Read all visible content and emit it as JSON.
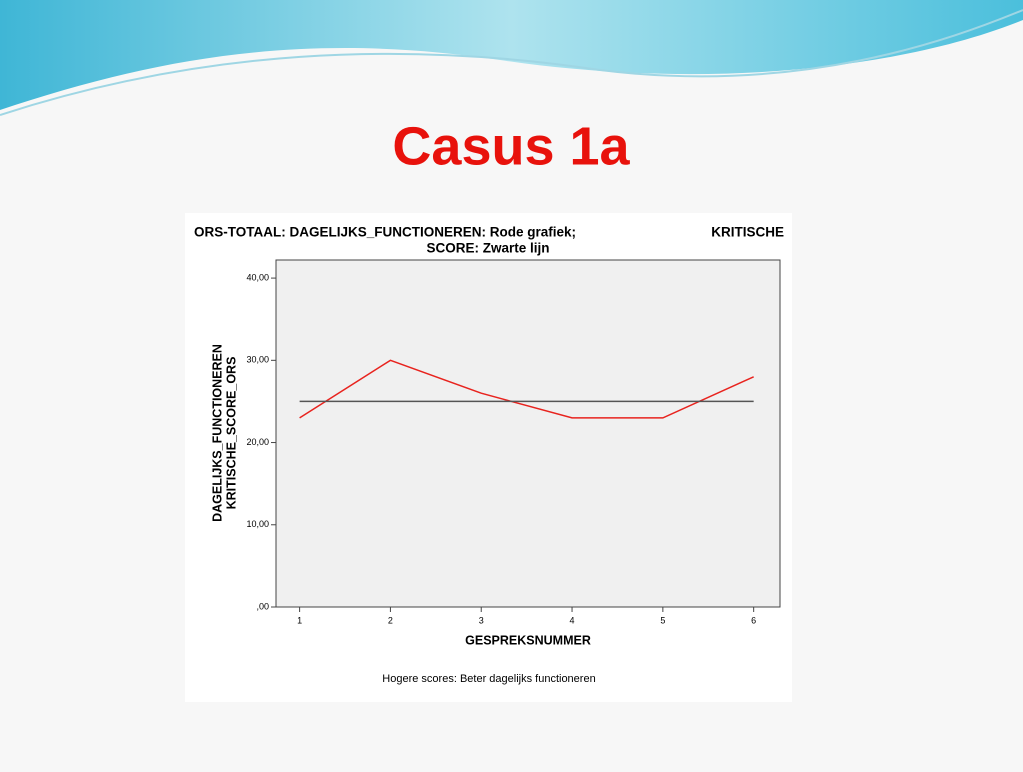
{
  "slide_title": "Casus 1a",
  "chart_data": {
    "type": "line",
    "title": [
      "ORS-TOTAAL: DAGELIJKS_FUNCTIONEREN: Rode grafiek;",
      "KRITISCHE",
      "SCORE: Zwarte lijn"
    ],
    "y_label": [
      "DAGELIJKS_FUNCTIONEREN",
      "KRITISCHE_SCORE_ORS"
    ],
    "x_label": "GESPREKSNUMMER",
    "note": "Hogere scores: Beter dagelijks functioneren",
    "x": [
      1,
      2,
      3,
      4,
      5,
      6
    ],
    "series": [
      {
        "color": "#e8231e",
        "values": [
          23,
          30,
          26,
          23,
          23,
          28
        ]
      },
      {
        "color": "#555555",
        "values": [
          25,
          25,
          25,
          25,
          25,
          25
        ]
      }
    ],
    "xlim": [
      0.74,
      6.29
    ],
    "xticks": [
      1,
      2,
      3,
      4,
      5,
      6
    ],
    "ylim": [
      0,
      42.2
    ],
    "yticks": [
      {
        "value": 0,
        "label": ",00"
      },
      {
        "value": 10,
        "label": "10,00"
      },
      {
        "value": 20,
        "label": "20,00"
      },
      {
        "value": 30,
        "label": "30,00"
      },
      {
        "value": 40,
        "label": "40,00"
      }
    ]
  }
}
